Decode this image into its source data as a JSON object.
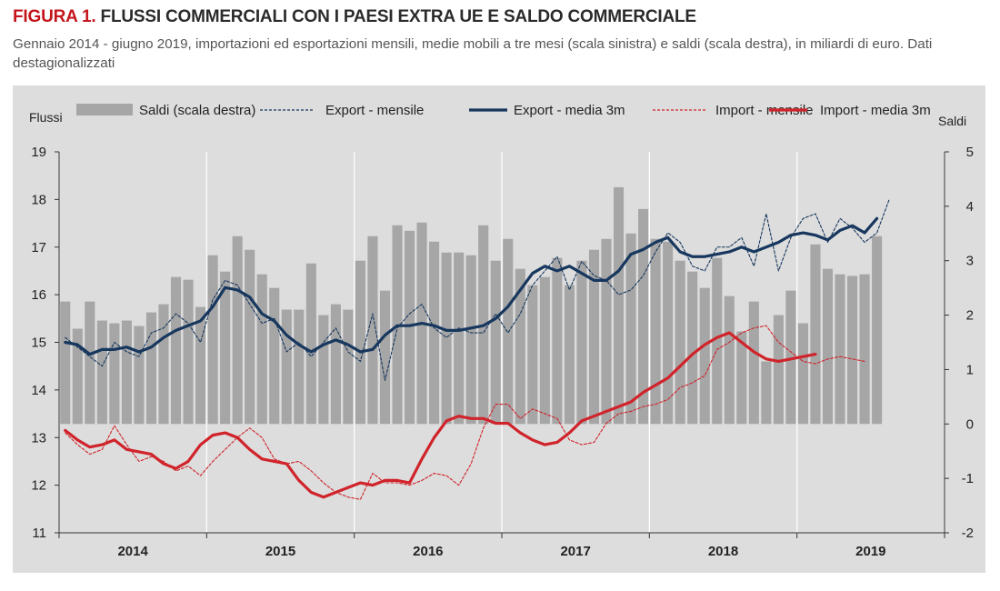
{
  "figure": {
    "label": "FIGURA 1.",
    "title": "FLUSSI COMMERCIALI CON I PAESI EXTRA UE E SALDO COMMERCIALE",
    "subtitle": "Gennaio 2014 - giugno 2019, importazioni ed esportazioni mensili, medie mobili a tre mesi (scala sinistra) e saldi (scala destra), in miliardi di euro. Dati destagionalizzati"
  },
  "colors": {
    "background": "#dddddd",
    "bars": "#a6a6a6",
    "export": "#17375e",
    "import": "#d0232a",
    "grid": "#ffffff"
  },
  "chart_data": {
    "type": "line",
    "secondary_type": "bar",
    "left_axis_title": "Flussi",
    "right_axis_title": "Saldi",
    "left_ylim": [
      11,
      19
    ],
    "left_yticks": [
      "11",
      "12",
      "13",
      "14",
      "15",
      "16",
      "17",
      "18",
      "19"
    ],
    "right_ylim": [
      -2,
      5
    ],
    "right_yticks": [
      "-2",
      "-1",
      "0",
      "1",
      "2",
      "3",
      "4",
      "5"
    ],
    "years": [
      "2014",
      "2015",
      "2016",
      "2017",
      "2018",
      "2019"
    ],
    "grid": "vertical lines at year boundaries",
    "legend": {
      "position": "top",
      "items": [
        {
          "label": "Saldi (scala destra)",
          "style": "bar"
        },
        {
          "label": "Export - mensile",
          "style": "dashed",
          "color": "#17375e"
        },
        {
          "label": "Export - media 3m",
          "style": "thick",
          "color": "#17375e"
        },
        {
          "label": "Import - mensile",
          "style": "dashed",
          "color": "#d0232a"
        },
        {
          "label": "Import - media 3m",
          "style": "thick",
          "color": "#d0232a"
        }
      ]
    },
    "series": [
      {
        "name": "Saldi (scala destra)",
        "axis": "right",
        "type": "bar",
        "values": [
          2.25,
          1.75,
          2.25,
          1.9,
          1.85,
          1.9,
          1.8,
          2.05,
          2.2,
          2.7,
          2.65,
          2.15,
          3.1,
          2.8,
          3.45,
          3.2,
          2.75,
          2.5,
          2.1,
          2.1,
          2.95,
          2.0,
          2.2,
          2.1,
          3.0,
          3.45,
          2.45,
          3.65,
          3.55,
          3.7,
          3.35,
          3.15,
          3.15,
          3.1,
          3.65,
          3.0,
          3.4,
          2.85,
          2.55,
          2.7,
          3.05,
          2.55,
          3.0,
          3.2,
          3.4,
          4.35,
          3.5,
          3.95,
          3.4,
          3.35,
          3.0,
          2.8,
          2.5,
          3.05,
          2.35,
          1.7,
          2.25,
          1.15,
          2.0,
          2.45,
          1.85,
          3.3,
          2.85,
          2.75,
          2.72,
          2.75,
          3.45
        ]
      },
      {
        "name": "Export - mensile",
        "axis": "left",
        "type": "line",
        "values": [
          15.1,
          14.9,
          14.7,
          14.5,
          15.0,
          14.8,
          14.7,
          15.2,
          15.3,
          15.6,
          15.4,
          15.0,
          15.9,
          16.3,
          16.2,
          15.8,
          15.4,
          15.5,
          14.8,
          15.0,
          14.7,
          15.0,
          15.3,
          14.8,
          14.6,
          15.6,
          14.2,
          15.3,
          15.6,
          15.8,
          15.3,
          15.1,
          15.3,
          15.2,
          15.2,
          15.6,
          15.2,
          15.6,
          16.2,
          16.5,
          16.8,
          16.1,
          16.7,
          16.4,
          16.3,
          16.0,
          16.1,
          16.4,
          16.9,
          17.3,
          17.1,
          16.6,
          16.5,
          17.0,
          17.0,
          17.2,
          16.6,
          17.7,
          16.5,
          17.2,
          17.6,
          17.7,
          17.1,
          17.6,
          17.4,
          17.1,
          17.3,
          18.0
        ]
      },
      {
        "name": "Export - media 3m",
        "axis": "left",
        "type": "line",
        "values": [
          15.0,
          14.95,
          14.75,
          14.85,
          14.85,
          14.9,
          14.8,
          14.9,
          15.1,
          15.25,
          15.35,
          15.45,
          15.75,
          16.15,
          16.1,
          15.95,
          15.6,
          15.45,
          15.15,
          14.95,
          14.8,
          14.95,
          15.05,
          14.95,
          14.8,
          14.85,
          15.15,
          15.35,
          15.35,
          15.4,
          15.35,
          15.25,
          15.25,
          15.3,
          15.35,
          15.5,
          15.75,
          16.1,
          16.45,
          16.6,
          16.5,
          16.6,
          16.45,
          16.3,
          16.3,
          16.5,
          16.85,
          16.95,
          17.1,
          17.2,
          16.9,
          16.8,
          16.8,
          16.85,
          16.9,
          17.0,
          16.9,
          17.0,
          17.1,
          17.25,
          17.3,
          17.25,
          17.15,
          17.35,
          17.45,
          17.3,
          17.6
        ]
      },
      {
        "name": "Import - mensile",
        "axis": "left",
        "type": "line",
        "values": [
          13.1,
          12.85,
          12.65,
          12.75,
          13.25,
          12.85,
          12.5,
          12.6,
          12.5,
          12.3,
          12.4,
          12.2,
          12.5,
          12.75,
          13.0,
          13.2,
          13.0,
          12.55,
          12.45,
          12.5,
          12.3,
          12.05,
          11.85,
          11.75,
          11.7,
          12.25,
          12.05,
          12.05,
          12.0,
          12.1,
          12.25,
          12.2,
          12.0,
          12.45,
          13.2,
          13.7,
          13.7,
          13.4,
          13.6,
          13.5,
          13.4,
          12.95,
          12.85,
          12.9,
          13.3,
          13.5,
          13.55,
          13.65,
          13.7,
          13.8,
          14.05,
          14.15,
          14.3,
          14.85,
          15.0,
          15.2,
          15.3,
          15.35,
          15.0,
          14.8,
          14.6,
          14.55,
          14.65,
          14.7,
          14.65,
          14.6
        ]
      },
      {
        "name": "Import - media 3m",
        "axis": "left",
        "type": "line",
        "values": [
          13.15,
          12.95,
          12.8,
          12.85,
          12.95,
          12.75,
          12.7,
          12.65,
          12.45,
          12.35,
          12.5,
          12.85,
          13.05,
          13.1,
          13.0,
          12.75,
          12.55,
          12.5,
          12.45,
          12.1,
          11.85,
          11.75,
          11.85,
          11.95,
          12.05,
          12.0,
          12.1,
          12.1,
          12.05,
          12.55,
          13.0,
          13.35,
          13.45,
          13.4,
          13.4,
          13.3,
          13.3,
          13.1,
          12.95,
          12.85,
          12.9,
          13.1,
          13.35,
          13.45,
          13.55,
          13.65,
          13.75,
          13.95,
          14.1,
          14.25,
          14.5,
          14.75,
          14.95,
          15.1,
          15.2,
          15.0,
          14.8,
          14.65,
          14.6,
          14.65,
          14.7,
          14.75
        ]
      }
    ]
  }
}
